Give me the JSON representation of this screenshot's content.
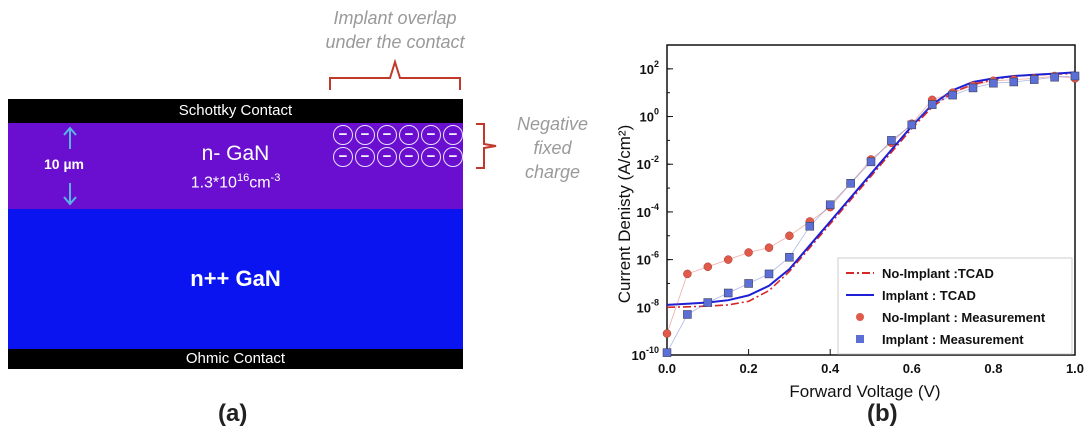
{
  "panel_a": {
    "label": "(a)",
    "schottky_label": "Schottky Contact",
    "ohmic_label": "Ohmic Contact",
    "n_layer_name": "n- GaN",
    "n_layer_doping_base": "1.3*10",
    "n_layer_doping_exp": "16",
    "n_layer_doping_unit": "cm",
    "n_layer_doping_unit_exp": "-3",
    "thickness_label": "10 µm",
    "npp_layer_name": "n++ GaN",
    "implant_note_line1": "Implant overlap",
    "implant_note_line2": "under the contact",
    "negative_line1": "Negative",
    "negative_line2": "fixed",
    "negative_line3": "charge",
    "charge_symbol": "−",
    "colors": {
      "contact": "#000000",
      "n_layer": "#6a0fcf",
      "npp_layer": "#0a14f0",
      "bracket": "#c0392b",
      "arrow": "#5ab4e6"
    }
  },
  "panel_b": {
    "label": "(b)"
  },
  "chart_data": {
    "type": "scatter",
    "xlabel": "Forward Voltage (V)",
    "ylabel": "Current Denisty (A/cm²)",
    "xlim": [
      0.0,
      1.0
    ],
    "ylim_log10": [
      -10,
      3
    ],
    "yscale": "log",
    "x_ticks": [
      0.0,
      0.2,
      0.4,
      0.6,
      0.8,
      1.0
    ],
    "x_tick_labels": [
      "0.0",
      "0.2",
      "0.4",
      "0.6",
      "0.8",
      "1.0"
    ],
    "y_tick_exponents": [
      -10,
      -8,
      -6,
      -4,
      -2,
      0,
      2
    ],
    "y_tick_base": "10",
    "legend_position": "bottom-right",
    "series": [
      {
        "name": "No-Implant :TCAD",
        "style": "dashdot-line",
        "color": "#d62728",
        "x": [
          0.0,
          0.05,
          0.1,
          0.15,
          0.2,
          0.25,
          0.3,
          0.35,
          0.4,
          0.45,
          0.5,
          0.55,
          0.6,
          0.65,
          0.7,
          0.75,
          0.8,
          0.85,
          0.9,
          0.95,
          1.0
        ],
        "log10_y": [
          -8.0,
          -7.98,
          -7.95,
          -7.9,
          -7.75,
          -7.3,
          -6.5,
          -5.5,
          -4.5,
          -3.5,
          -2.5,
          -1.5,
          -0.5,
          0.4,
          1.0,
          1.35,
          1.55,
          1.7,
          1.75,
          1.78,
          1.8
        ]
      },
      {
        "name": "Implant : TCAD",
        "style": "solid-line",
        "color": "#1f1fd6",
        "x": [
          0.0,
          0.05,
          0.1,
          0.15,
          0.2,
          0.25,
          0.3,
          0.35,
          0.4,
          0.45,
          0.5,
          0.55,
          0.6,
          0.65,
          0.7,
          0.75,
          0.8,
          0.85,
          0.9,
          0.95,
          1.0
        ],
        "log10_y": [
          -7.9,
          -7.85,
          -7.8,
          -7.7,
          -7.5,
          -7.1,
          -6.4,
          -5.4,
          -4.4,
          -3.4,
          -2.4,
          -1.4,
          -0.4,
          0.5,
          1.1,
          1.45,
          1.6,
          1.7,
          1.75,
          1.8,
          1.85
        ]
      },
      {
        "name": "No-Implant : Measurement",
        "style": "circle-marker",
        "color": "#e05a4a",
        "x": [
          0.0,
          0.05,
          0.1,
          0.15,
          0.2,
          0.25,
          0.3,
          0.35,
          0.4,
          0.45,
          0.5,
          0.55,
          0.6,
          0.65,
          0.7,
          0.75,
          0.8,
          0.85,
          0.9,
          0.95,
          1.0
        ],
        "log10_y": [
          -9.1,
          -6.6,
          -6.3,
          -6.0,
          -5.7,
          -5.5,
          -5.0,
          -4.4,
          -3.8,
          -2.8,
          -1.8,
          -1.1,
          -0.3,
          0.7,
          1.0,
          1.3,
          1.5,
          1.55,
          1.6,
          1.7,
          1.6
        ]
      },
      {
        "name": "Implant : Measurement",
        "style": "square-marker",
        "color": "#5b6fd6",
        "x": [
          0.0,
          0.05,
          0.1,
          0.15,
          0.2,
          0.25,
          0.3,
          0.35,
          0.4,
          0.45,
          0.5,
          0.55,
          0.6,
          0.65,
          0.7,
          0.75,
          0.8,
          0.85,
          0.9,
          0.95,
          1.0
        ],
        "log10_y": [
          -9.9,
          -8.3,
          -7.8,
          -7.4,
          -7.0,
          -6.6,
          -5.9,
          -4.6,
          -3.7,
          -2.8,
          -1.9,
          -1.0,
          -0.35,
          0.5,
          0.9,
          1.2,
          1.4,
          1.45,
          1.55,
          1.65,
          1.7
        ]
      }
    ]
  }
}
